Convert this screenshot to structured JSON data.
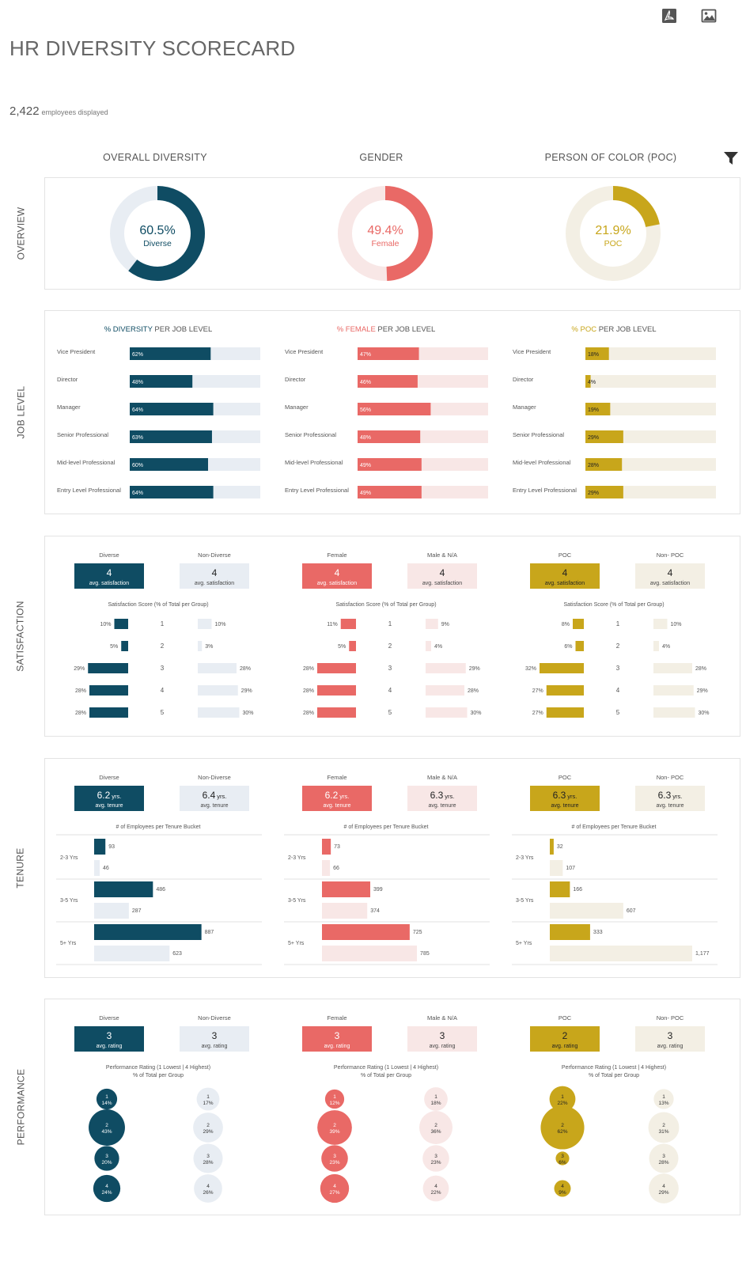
{
  "header": {
    "title": "HR DIVERSITY SCORECARD",
    "count": "2,422",
    "count_label": "employees displayed"
  },
  "toolbar": {
    "pdf_icon": "pdf-icon",
    "image_icon": "image-icon",
    "filter_icon": "filter-icon"
  },
  "columns": [
    "OVERALL DIVERSITY",
    "GENDER",
    "PERSON OF COLOR (POC)"
  ],
  "sections": [
    "OVERVIEW",
    "JOB LEVEL",
    "SATISFACTION",
    "TENURE",
    "PERFORMANCE"
  ],
  "groups": [
    {
      "key": "diversity",
      "color": "#0f4c63",
      "light": "#e8edf3",
      "text_on_color": "#ffffff"
    },
    {
      "key": "gender",
      "color": "#e96966",
      "light": "#f8e7e6",
      "text_on_color": "#ffffff"
    },
    {
      "key": "poc",
      "color": "#c8a61b",
      "light": "#f3efe4",
      "text_on_color": "#ffffff"
    }
  ],
  "chart_data": [
    {
      "type": "pie",
      "section": "overview",
      "items": [
        {
          "value": 60.5,
          "value_label": "60.5%",
          "label": "Diverse"
        },
        {
          "value": 49.4,
          "value_label": "49.4%",
          "label": "Female"
        },
        {
          "value": 21.9,
          "value_label": "21.9%",
          "label": "POC"
        }
      ]
    },
    {
      "type": "bar",
      "section": "job_level",
      "categories": [
        "Vice President",
        "Director",
        "Manager",
        "Senior Professional",
        "Mid-level Professional",
        "Entry Level Professional"
      ],
      "titles": [
        {
          "highlight": "% DIVERSITY",
          "rest": " PER JOB LEVEL"
        },
        {
          "highlight": "% FEMALE",
          "rest": " PER JOB LEVEL"
        },
        {
          "highlight": "% POC",
          "rest": " PER JOB LEVEL"
        }
      ],
      "series": [
        {
          "values": [
            62,
            48,
            64,
            63,
            60,
            64
          ]
        },
        {
          "values": [
            47,
            46,
            56,
            48,
            49,
            49
          ]
        },
        {
          "values": [
            18,
            4,
            19,
            29,
            28,
            29
          ]
        }
      ],
      "ylim": [
        0,
        100
      ]
    },
    {
      "type": "bar",
      "section": "satisfaction",
      "subtitle": "Satisfaction Score (% of Total per Group)",
      "categories": [
        "1",
        "2",
        "3",
        "4",
        "5"
      ],
      "groups": [
        {
          "a_name": "Diverse",
          "b_name": "Non-Diverse",
          "a_score": "4",
          "b_score": "4",
          "score_label": "avg. satisfaction",
          "a_values": [
            10,
            5,
            29,
            28,
            28
          ],
          "b_values": [
            10,
            3,
            28,
            29,
            30
          ]
        },
        {
          "a_name": "Female",
          "b_name": "Male & N/A",
          "a_score": "4",
          "b_score": "4",
          "score_label": "avg. satisfaction",
          "a_values": [
            11,
            5,
            28,
            28,
            28
          ],
          "b_values": [
            9,
            4,
            29,
            28,
            30
          ]
        },
        {
          "a_name": "POC",
          "b_name": "Non- POC",
          "a_score": "4",
          "b_score": "4",
          "score_label": "avg. satisfaction",
          "a_values": [
            8,
            6,
            32,
            27,
            27
          ],
          "b_values": [
            10,
            4,
            28,
            29,
            30
          ]
        }
      ]
    },
    {
      "type": "bar",
      "section": "tenure",
      "subtitle": "# of Employees per Tenure Bucket",
      "categories": [
        "2-3 Yrs",
        "3-5 Yrs",
        "5+ Yrs"
      ],
      "groups": [
        {
          "a_name": "Diverse",
          "b_name": "Non-Diverse",
          "a_score": "6.2",
          "b_score": "6.4",
          "unit": "yrs.",
          "score_label": "avg. tenure",
          "a_values": [
            93,
            486,
            887
          ],
          "b_values": [
            46,
            287,
            623
          ],
          "a_labels": [
            "93",
            "486",
            "887"
          ],
          "b_labels": [
            "46",
            "287",
            "623"
          ]
        },
        {
          "a_name": "Female",
          "b_name": "Male & N/A",
          "a_score": "6.2",
          "b_score": "6.3",
          "unit": "yrs.",
          "score_label": "avg. tenure",
          "a_values": [
            73,
            399,
            725
          ],
          "b_values": [
            66,
            374,
            785
          ],
          "a_labels": [
            "73",
            "399",
            "725"
          ],
          "b_labels": [
            "66",
            "374",
            "785"
          ]
        },
        {
          "a_name": "POC",
          "b_name": "Non- POC",
          "a_score": "6.3",
          "b_score": "6.3",
          "unit": "yrs.",
          "score_label": "avg. tenure",
          "a_values": [
            32,
            166,
            333
          ],
          "b_values": [
            107,
            607,
            1177
          ],
          "a_labels": [
            "32",
            "166",
            "333"
          ],
          "b_labels": [
            "107",
            "607",
            "1,177"
          ]
        }
      ]
    },
    {
      "type": "scatter",
      "section": "performance",
      "subtitle": "Performance Rating (1 Lowest | 4 Highest)",
      "subtitle2": "% of Total per Group",
      "categories": [
        "1",
        "2",
        "3",
        "4"
      ],
      "groups": [
        {
          "a_name": "Diverse",
          "b_name": "Non-Diverse",
          "a_score": "3",
          "b_score": "3",
          "score_label": "avg. rating",
          "a_values": [
            14,
            43,
            20,
            24
          ],
          "b_values": [
            17,
            29,
            28,
            26
          ]
        },
        {
          "a_name": "Female",
          "b_name": "Male & N/A",
          "a_score": "3",
          "b_score": "3",
          "score_label": "avg. rating",
          "a_values": [
            12,
            39,
            23,
            27
          ],
          "b_values": [
            18,
            36,
            23,
            22
          ]
        },
        {
          "a_name": "POC",
          "b_name": "Non- POC",
          "a_score": "2",
          "b_score": "3",
          "score_label": "avg. rating",
          "a_values": [
            22,
            62,
            6,
            9
          ],
          "b_values": [
            13,
            31,
            28,
            29
          ]
        }
      ]
    }
  ]
}
